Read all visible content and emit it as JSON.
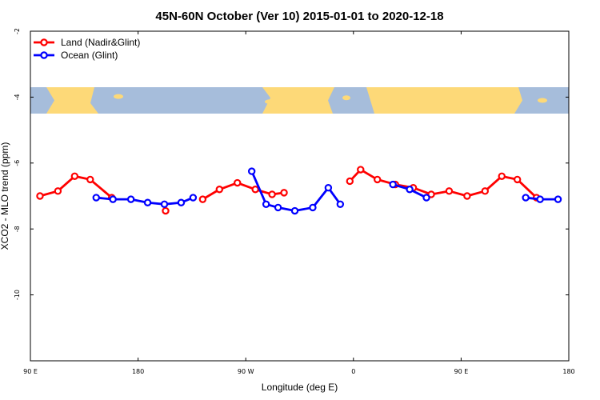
{
  "chart_data": {
    "type": "line",
    "title": "45N-60N October (Ver 10)   2015-01-01 to 2020-12-18",
    "xlabel": "Longitude (deg E)",
    "ylabel": "XCO2 - MLO trend (ppm)",
    "x_ticks": [
      {
        "value": 90,
        "label": "90 E"
      },
      {
        "value": 180,
        "label": "180"
      },
      {
        "value": 270,
        "label": "90 W"
      },
      {
        "value": 360,
        "label": "0"
      },
      {
        "value": 450,
        "label": "90 E"
      },
      {
        "value": 540,
        "label": "180"
      }
    ],
    "y_ticks": [
      {
        "value": -2,
        "label": "-2"
      },
      {
        "value": -4,
        "label": "-4"
      },
      {
        "value": -6,
        "label": "-6"
      },
      {
        "value": -8,
        "label": "-8"
      },
      {
        "value": -10,
        "label": "-10"
      }
    ],
    "xlim": [
      90,
      540
    ],
    "ylim": [
      -12,
      -2
    ],
    "legend_position": "top-left",
    "grid": false,
    "map_strip": {
      "y_range": [
        -4.5,
        -3.7
      ],
      "ocean_color": "#a6bddb",
      "land_color": "#fdd978"
    },
    "series": [
      {
        "name": "Land (Nadir&Glint)",
        "color": "#ff0000",
        "segments": [
          [
            [
              98,
              -7.0
            ],
            [
              113,
              -6.85
            ],
            [
              127,
              -6.4
            ],
            [
              140,
              -6.5
            ],
            [
              158,
              -7.05
            ]
          ],
          [
            [
              203,
              -7.45
            ]
          ],
          [
            [
              234,
              -7.1
            ],
            [
              248,
              -6.8
            ],
            [
              263,
              -6.6
            ],
            [
              278,
              -6.8
            ],
            [
              292,
              -6.95
            ],
            [
              302,
              -6.9
            ]
          ],
          [
            [
              357,
              -6.55
            ],
            [
              366,
              -6.2
            ],
            [
              380,
              -6.5
            ],
            [
              395,
              -6.65
            ],
            [
              410,
              -6.75
            ],
            [
              425,
              -6.95
            ],
            [
              440,
              -6.85
            ],
            [
              455,
              -7.0
            ],
            [
              470,
              -6.85
            ],
            [
              484,
              -6.4
            ],
            [
              497,
              -6.5
            ],
            [
              513,
              -7.05
            ]
          ]
        ]
      },
      {
        "name": "Ocean (Glint)",
        "color": "#0000ff",
        "segments": [
          [
            [
              145,
              -7.05
            ],
            [
              159,
              -7.1
            ],
            [
              174,
              -7.1
            ],
            [
              188,
              -7.2
            ],
            [
              202,
              -7.25
            ],
            [
              216,
              -7.2
            ],
            [
              226,
              -7.05
            ]
          ],
          [
            [
              275,
              -6.25
            ],
            [
              287,
              -7.25
            ],
            [
              297,
              -7.35
            ],
            [
              311,
              -7.45
            ],
            [
              326,
              -7.35
            ],
            [
              339,
              -6.75
            ],
            [
              349,
              -7.25
            ]
          ],
          [
            [
              393,
              -6.65
            ],
            [
              407,
              -6.8
            ],
            [
              421,
              -7.05
            ]
          ],
          [
            [
              504,
              -7.05
            ],
            [
              516,
              -7.1
            ],
            [
              531,
              -7.1
            ]
          ]
        ]
      }
    ]
  }
}
